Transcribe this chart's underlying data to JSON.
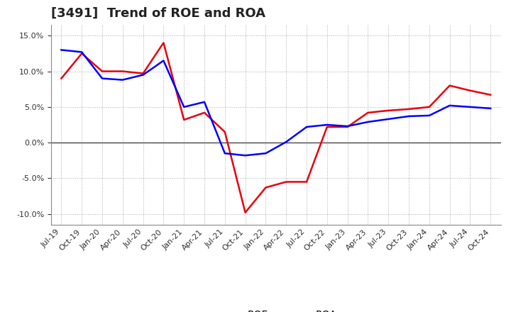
{
  "title": "[3491]  Trend of ROE and ROA",
  "x_labels": [
    "Jul-19",
    "Oct-19",
    "Jan-20",
    "Apr-20",
    "Jul-20",
    "Oct-20",
    "Jan-21",
    "Apr-21",
    "Jul-21",
    "Oct-21",
    "Jan-22",
    "Apr-22",
    "Jul-22",
    "Oct-22",
    "Jan-23",
    "Apr-23",
    "Jul-23",
    "Oct-23",
    "Jan-24",
    "Apr-24",
    "Jul-24",
    "Oct-24"
  ],
  "roe": [
    9.0,
    12.5,
    10.0,
    10.0,
    9.7,
    14.0,
    3.2,
    4.2,
    1.5,
    -9.8,
    -6.3,
    -5.5,
    -5.5,
    2.2,
    2.2,
    4.2,
    4.5,
    4.7,
    5.0,
    8.0,
    7.3,
    6.7
  ],
  "roa": [
    13.0,
    12.7,
    9.0,
    8.8,
    9.5,
    11.5,
    5.0,
    5.7,
    -1.5,
    -1.8,
    -1.5,
    0.1,
    2.2,
    2.5,
    2.3,
    2.9,
    3.3,
    3.7,
    3.8,
    5.2,
    5.0,
    4.8
  ],
  "roe_color": "#e8000d",
  "roa_color": "#0000ff",
  "background_color": "#ffffff",
  "plot_bg_color": "#ffffff",
  "grid_color": "#aaaaaa",
  "ylim": [
    -11.5,
    16.5
  ],
  "yticks": [
    -10.0,
    -5.0,
    0.0,
    5.0,
    10.0,
    15.0
  ],
  "line_width": 1.8,
  "title_fontsize": 13,
  "tick_fontsize": 8,
  "legend_fontsize": 10
}
